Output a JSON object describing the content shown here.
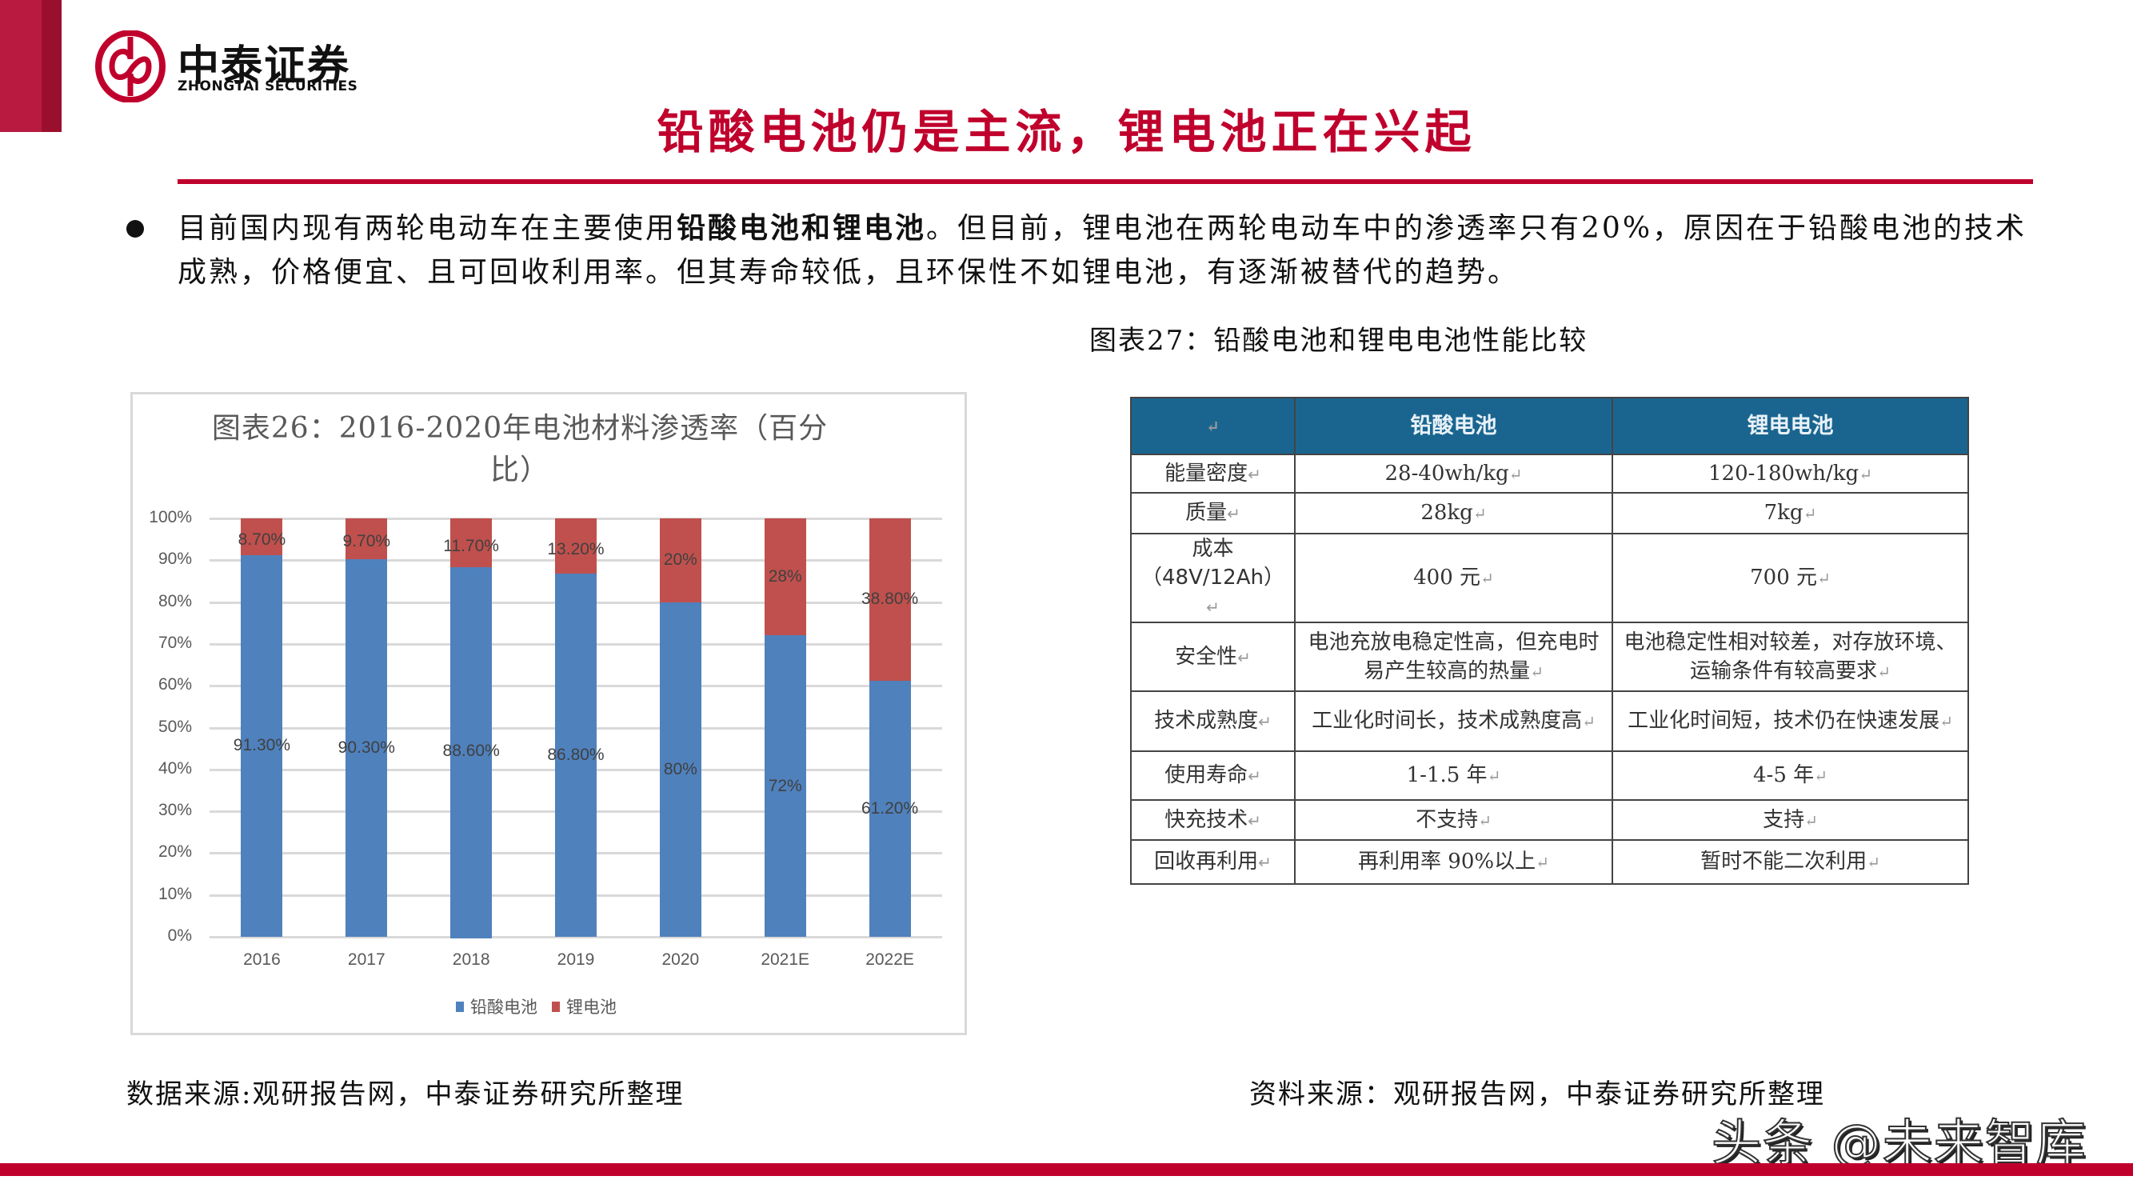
{
  "header": {
    "brand_cn": "中泰证券",
    "brand_en": "ZHONGTAI SECURITIES",
    "brand_color": "#c0002c",
    "title": "铅酸电池仍是主流，锂电池正在兴起"
  },
  "body": {
    "bullet_pre": "目前国内现有两轮电动车在主要使用",
    "bullet_bold": "铅酸电池和锂电池",
    "bullet_post": "。但目前，锂电池在两轮电动车中的渗透率只有20%，原因在于铅酸电池的技术成熟，价格便宜、且可回收利用率。但其寿命较低，且环保性不如锂电池，有逐渐被替代的趋势。"
  },
  "chart_data": {
    "type": "bar",
    "stacked": true,
    "title": "图表26：2016-2020年电池材料渗透率（百分比）",
    "title_line1": "图表26：2016-2020年电池材料渗透率（百分",
    "title_line2": "比）",
    "categories": [
      "2016",
      "2017",
      "2018",
      "2019",
      "2020",
      "2021E",
      "2022E"
    ],
    "series": [
      {
        "name": "铅酸电池",
        "color": "#4f81bd",
        "values": [
          91.3,
          90.3,
          88.6,
          86.8,
          80,
          72,
          61.2
        ],
        "labels": [
          "91.30%",
          "90.30%",
          "88.60%",
          "86.80%",
          "80%",
          "72%",
          "61.20%"
        ]
      },
      {
        "name": "锂电池",
        "color": "#c0504d",
        "values": [
          8.7,
          9.7,
          11.7,
          13.2,
          20,
          28,
          38.8
        ],
        "labels": [
          "8.70%",
          "9.70%",
          "11.70%",
          "13.20%",
          "20%",
          "28%",
          "38.80%"
        ]
      }
    ],
    "yticks": [
      "0%",
      "10%",
      "20%",
      "30%",
      "40%",
      "50%",
      "60%",
      "70%",
      "80%",
      "90%",
      "100%"
    ],
    "ylim": [
      0,
      100
    ],
    "xlabel": "",
    "ylabel": "",
    "grid": true,
    "legend_position": "bottom"
  },
  "chart_source": "数据来源:观研报告网，中泰证券研究所整理",
  "table": {
    "caption": "图表27：铅酸电池和锂电电池性能比较",
    "return_mark": "↵",
    "headers": [
      "",
      "铅酸电池",
      "锂电电池"
    ],
    "header_color": "#1a6590",
    "rows": [
      {
        "label": "能量密度",
        "lead": "28-40wh/kg",
        "li": "120-180wh/kg"
      },
      {
        "label": "质量",
        "lead": "28kg",
        "li": "7kg"
      },
      {
        "label": "成本（48V/12Ah）",
        "lead": "400 元",
        "li": "700 元"
      },
      {
        "label": "安全性",
        "lead": "电池充放电稳定性高，但充电时易产生较高的热量",
        "li": "电池稳定性相对较差，对存放环境、运输条件有较高要求"
      },
      {
        "label": "技术成熟度",
        "lead": "工业化时间长，技术成熟度高",
        "li": "工业化时间短，技术仍在快速发展"
      },
      {
        "label": "使用寿命",
        "lead": "1-1.5 年",
        "li": "4-5 年"
      },
      {
        "label": "快充技术",
        "lead": "不支持",
        "li": "支持"
      },
      {
        "label": "回收再利用",
        "lead": "再利用率 90%以上",
        "li": "暂时不能二次利用"
      }
    ],
    "source": "资料来源：观研报告网，中泰证券研究所整理"
  },
  "watermark": "头条 @未来智库"
}
